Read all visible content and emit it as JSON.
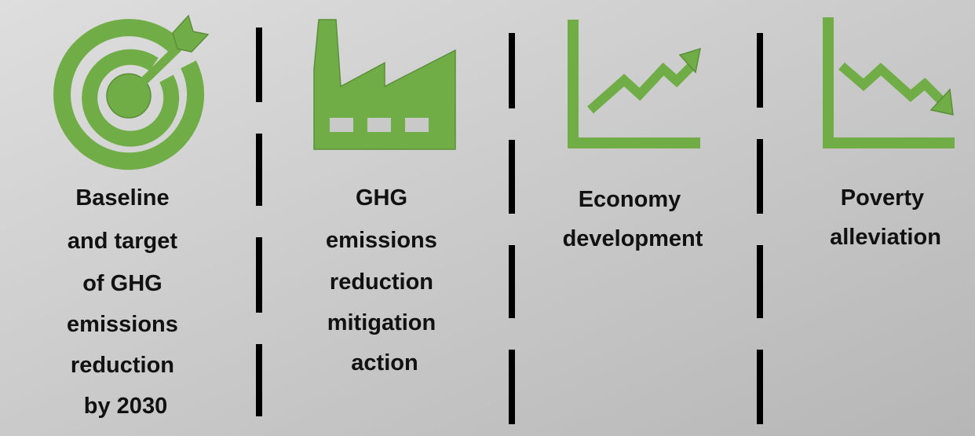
{
  "items": [
    {
      "lines": [
        "Baseline",
        "and target",
        "of GHG",
        "emissions",
        "reduction",
        "by 2030"
      ]
    },
    {
      "lines": [
        "GHG",
        "emissions",
        "reduction",
        "mitigation",
        "action"
      ]
    },
    {
      "lines": [
        "Economy",
        "development"
      ]
    },
    {
      "lines": [
        "Poverty",
        "alleviation"
      ]
    }
  ]
}
